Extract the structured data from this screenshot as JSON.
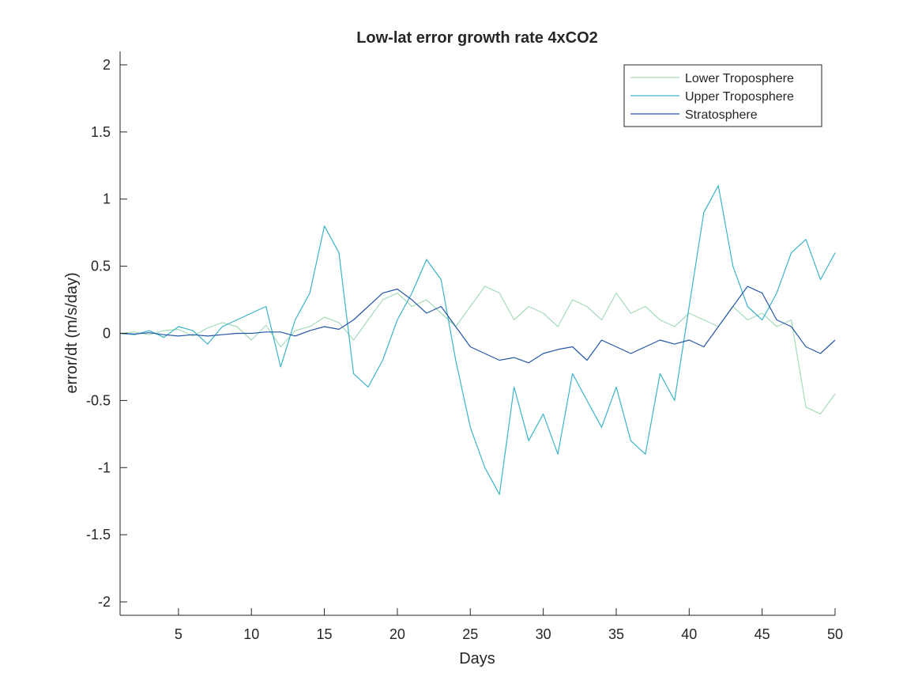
{
  "chart_data": {
    "type": "line",
    "title": "Low-lat error growth rate 4xCO2",
    "xlabel": "Days",
    "ylabel": "error/dt (m/s/day)",
    "xlim": [
      1,
      50
    ],
    "ylim": [
      -2.1,
      2.1
    ],
    "xticks": [
      5,
      10,
      15,
      20,
      25,
      30,
      35,
      40,
      45,
      50
    ],
    "yticks": [
      -2,
      -1.5,
      -1,
      -0.5,
      0,
      0.5,
      1,
      1.5,
      2
    ],
    "ytick_labels": [
      "-2",
      "-1.5",
      "-1",
      "-0.5",
      "0",
      "0.5",
      "1",
      "1.5",
      "2"
    ],
    "grid": false,
    "legend_position": "top-right",
    "x": [
      1,
      2,
      3,
      4,
      5,
      6,
      7,
      8,
      9,
      10,
      11,
      12,
      13,
      14,
      15,
      16,
      17,
      18,
      19,
      20,
      21,
      22,
      23,
      24,
      25,
      26,
      27,
      28,
      29,
      30,
      31,
      32,
      33,
      34,
      35,
      36,
      37,
      38,
      39,
      40,
      41,
      42,
      43,
      44,
      45,
      46,
      47,
      48,
      49,
      50
    ],
    "series": [
      {
        "name": "Lower Troposphere",
        "color": "#a6dbb8",
        "values": [
          0,
          0.01,
          -0.01,
          0.02,
          0.03,
          -0.02,
          0.04,
          0.08,
          0.05,
          -0.05,
          0.06,
          -0.1,
          0.02,
          0.05,
          0.12,
          0.08,
          -0.05,
          0.1,
          0.25,
          0.3,
          0.2,
          0.25,
          0.15,
          0.05,
          0.2,
          0.35,
          0.3,
          0.1,
          0.2,
          0.15,
          0.05,
          0.25,
          0.2,
          0.1,
          0.3,
          0.15,
          0.2,
          0.1,
          0.05,
          0.15,
          0.1,
          0.05,
          0.2,
          0.1,
          0.15,
          0.05,
          0.1,
          -0.55,
          -0.6,
          -0.45
        ]
      },
      {
        "name": "Upper Troposphere",
        "color": "#3bb3c8",
        "values": [
          0,
          -0.01,
          0.02,
          -0.03,
          0.05,
          0.02,
          -0.08,
          0.05,
          0.1,
          0.15,
          0.2,
          -0.25,
          0.1,
          0.3,
          0.8,
          0.6,
          -0.3,
          -0.4,
          -0.2,
          0.1,
          0.3,
          0.55,
          0.4,
          -0.2,
          -0.7,
          -1.0,
          -1.2,
          -0.4,
          -0.8,
          -0.6,
          -0.9,
          -0.3,
          -0.5,
          -0.7,
          -0.4,
          -0.8,
          -0.9,
          -0.3,
          -0.5,
          0.2,
          0.9,
          1.1,
          0.5,
          0.2,
          0.1,
          0.3,
          0.6,
          0.7,
          0.4,
          0.6
        ]
      },
      {
        "name": "Stratosphere",
        "color": "#2457a6",
        "values": [
          0,
          -0.005,
          0.005,
          -0.01,
          -0.02,
          -0.01,
          -0.02,
          -0.01,
          0,
          0,
          0.01,
          0.01,
          -0.02,
          0.02,
          0.05,
          0.03,
          0.1,
          0.2,
          0.3,
          0.33,
          0.25,
          0.15,
          0.2,
          0.05,
          -0.1,
          -0.15,
          -0.2,
          -0.18,
          -0.22,
          -0.15,
          -0.12,
          -0.1,
          -0.2,
          -0.05,
          -0.1,
          -0.15,
          -0.1,
          -0.05,
          -0.08,
          -0.05,
          -0.1,
          0.05,
          0.2,
          0.35,
          0.3,
          0.1,
          0.05,
          -0.1,
          -0.15,
          -0.05
        ]
      }
    ]
  }
}
